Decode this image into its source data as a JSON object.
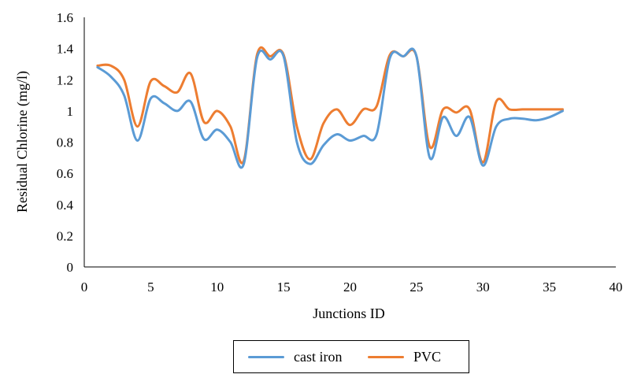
{
  "chart_data": {
    "type": "line",
    "xlabel": "Junctions ID",
    "ylabel": "Residual Chlorine (mg/l)",
    "xlim": [
      0,
      40
    ],
    "ylim": [
      0,
      1.6
    ],
    "xticks": [
      "0",
      "5",
      "10",
      "15",
      "20",
      "25",
      "30",
      "35",
      "40"
    ],
    "yticks": [
      "0",
      "0.2",
      "0.4",
      "0.6",
      "0.8",
      "1",
      "1.2",
      "1.4",
      "1.6"
    ],
    "grid": false,
    "legend_position": "bottom",
    "x": [
      1,
      2,
      3,
      4,
      5,
      6,
      7,
      8,
      9,
      10,
      11,
      12,
      13,
      14,
      15,
      16,
      17,
      18,
      19,
      20,
      21,
      22,
      23,
      24,
      25,
      26,
      27,
      28,
      29,
      30,
      31,
      32,
      33,
      34,
      35,
      36
    ],
    "series": [
      {
        "name": "cast iron",
        "color": "#5b9bd5",
        "values": [
          1.28,
          1.22,
          1.1,
          0.81,
          1.08,
          1.05,
          1.0,
          1.06,
          0.82,
          0.88,
          0.8,
          0.66,
          1.34,
          1.33,
          1.35,
          0.8,
          0.66,
          0.78,
          0.85,
          0.81,
          0.84,
          0.85,
          1.34,
          1.35,
          1.35,
          0.7,
          0.96,
          0.84,
          0.96,
          0.65,
          0.9,
          0.95,
          0.95,
          0.94,
          0.96,
          1.0
        ]
      },
      {
        "name": "PVC",
        "color": "#ed7d31",
        "values": [
          1.29,
          1.29,
          1.2,
          0.9,
          1.19,
          1.16,
          1.12,
          1.24,
          0.93,
          1.0,
          0.9,
          0.68,
          1.36,
          1.35,
          1.36,
          0.9,
          0.69,
          0.92,
          1.01,
          0.91,
          1.01,
          1.03,
          1.36,
          1.35,
          1.35,
          0.77,
          1.01,
          0.99,
          1.01,
          0.67,
          1.06,
          1.01,
          1.01,
          1.01,
          1.01,
          1.01
        ]
      }
    ]
  }
}
